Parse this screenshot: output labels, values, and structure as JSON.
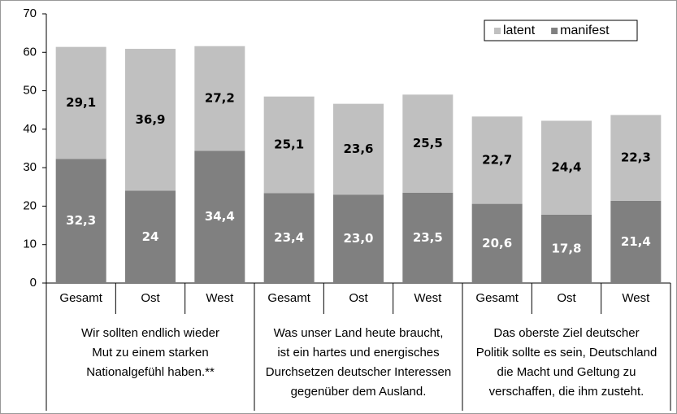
{
  "chart_data": {
    "type": "stacked_bar",
    "categories": [
      "Gesamt",
      "Ost",
      "West",
      "Gesamt",
      "Ost",
      "West",
      "Gesamt",
      "Ost",
      "West"
    ],
    "groups": [
      [
        "Wir sollten endlich wieder",
        "Mut zu einem starken",
        "Nationalgefühl haben.**"
      ],
      [
        "Was unser Land heute braucht,",
        "ist ein hartes und energisches",
        "Durchsetzen deutscher Interessen",
        "gegenüber dem Ausland."
      ],
      [
        "Das oberste Ziel deutscher",
        "Politik sollte es sein, Deutschland",
        "die Macht und Geltung zu",
        "verschaffen, die ihm zusteht."
      ]
    ],
    "series": [
      {
        "name": "manifest",
        "color": "#808080",
        "label_color": "#ffffff",
        "values": [
          32.3,
          24,
          34.4,
          23.4,
          23.0,
          23.5,
          20.6,
          17.8,
          21.4
        ],
        "value_labels": [
          "32,3",
          "24",
          "34,4",
          "23,4",
          "23,0",
          "23,5",
          "20,6",
          "17,8",
          "21,4"
        ]
      },
      {
        "name": "latent",
        "color": "#c0c0c0",
        "label_color": "#000000",
        "values": [
          29.1,
          36.9,
          27.2,
          25.1,
          23.6,
          25.5,
          22.7,
          24.4,
          22.3
        ],
        "value_labels": [
          "29,1",
          "36,9",
          "27,2",
          "25,1",
          "23,6",
          "25,5",
          "22,7",
          "24,4",
          "22,3"
        ]
      }
    ],
    "legend_order": [
      "latent",
      "manifest"
    ],
    "legend": "top-right",
    "ylim": [
      0,
      70
    ],
    "yticks": [
      0,
      10,
      20,
      30,
      40,
      50,
      60,
      70
    ],
    "grid": false
  }
}
